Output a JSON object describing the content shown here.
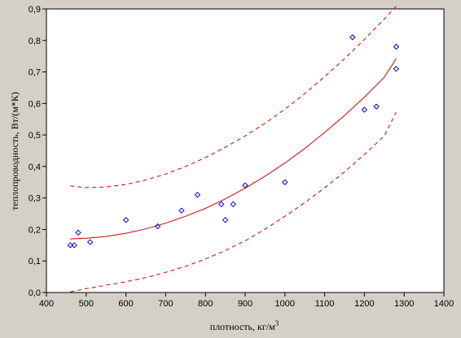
{
  "chart_data": {
    "type": "scatter",
    "title": "",
    "xlabel": "плотность, кг/м",
    "xlabel_sup": "3",
    "ylabel": "теплопроводность, Вт/(м*К)",
    "xlim": [
      400,
      1400
    ],
    "ylim": [
      0,
      0.9
    ],
    "x_ticks": [
      400,
      500,
      600,
      700,
      800,
      900,
      1000,
      1100,
      1200,
      1300,
      1400
    ],
    "x_tick_labels": [
      "400",
      "500",
      "600",
      "700",
      "800",
      "900",
      "1000",
      "1100",
      "1200",
      "1300",
      "1400"
    ],
    "y_ticks": [
      0,
      0.1,
      0.2,
      0.3,
      0.4,
      0.5,
      0.6,
      0.7,
      0.8,
      0.9
    ],
    "y_tick_labels": [
      "0,0",
      "0,1",
      "0,2",
      "0,3",
      "0,4",
      "0,5",
      "0,6",
      "0,7",
      "0,8",
      "0,9"
    ],
    "grid": false,
    "legend": "none",
    "colors": {
      "points": "#0000cc",
      "fit": "#cc0000",
      "background": "#ffffff",
      "frame": "#000000",
      "window": "#d4d0c8"
    },
    "points": [
      {
        "x": 460,
        "y": 0.15
      },
      {
        "x": 470,
        "y": 0.15
      },
      {
        "x": 480,
        "y": 0.19
      },
      {
        "x": 510,
        "y": 0.16
      },
      {
        "x": 600,
        "y": 0.23
      },
      {
        "x": 680,
        "y": 0.21
      },
      {
        "x": 740,
        "y": 0.26
      },
      {
        "x": 780,
        "y": 0.31
      },
      {
        "x": 840,
        "y": 0.28
      },
      {
        "x": 850,
        "y": 0.23
      },
      {
        "x": 870,
        "y": 0.28
      },
      {
        "x": 900,
        "y": 0.34
      },
      {
        "x": 1000,
        "y": 0.35
      },
      {
        "x": 1170,
        "y": 0.81
      },
      {
        "x": 1200,
        "y": 0.58
      },
      {
        "x": 1230,
        "y": 0.59
      },
      {
        "x": 1280,
        "y": 0.78
      },
      {
        "x": 1280,
        "y": 0.71
      }
    ],
    "fit_line": {
      "style": "solid",
      "x": [
        460,
        500,
        550,
        600,
        650,
        700,
        750,
        800,
        850,
        900,
        950,
        1000,
        1050,
        1100,
        1150,
        1200,
        1250,
        1280
      ],
      "y": [
        0.17,
        0.172,
        0.178,
        0.188,
        0.202,
        0.22,
        0.242,
        0.267,
        0.297,
        0.331,
        0.369,
        0.411,
        0.457,
        0.508,
        0.562,
        0.62,
        0.683,
        0.742
      ]
    },
    "confidence_upper": {
      "style": "dashed",
      "x": [
        460,
        500,
        550,
        600,
        650,
        700,
        750,
        800,
        850,
        900,
        950,
        1000,
        1050,
        1100,
        1150,
        1200,
        1250,
        1280
      ],
      "y": [
        0.338,
        0.333,
        0.335,
        0.343,
        0.357,
        0.376,
        0.4,
        0.428,
        0.461,
        0.497,
        0.537,
        0.582,
        0.631,
        0.685,
        0.742,
        0.803,
        0.868,
        0.908
      ]
    },
    "confidence_lower": {
      "style": "dashed",
      "x": [
        460,
        500,
        550,
        600,
        650,
        700,
        750,
        800,
        850,
        900,
        950,
        1000,
        1050,
        1100,
        1150,
        1200,
        1250,
        1280
      ],
      "y": [
        0.002,
        0.012,
        0.023,
        0.034,
        0.047,
        0.064,
        0.083,
        0.106,
        0.133,
        0.164,
        0.201,
        0.242,
        0.285,
        0.332,
        0.383,
        0.438,
        0.497,
        0.572
      ]
    }
  }
}
